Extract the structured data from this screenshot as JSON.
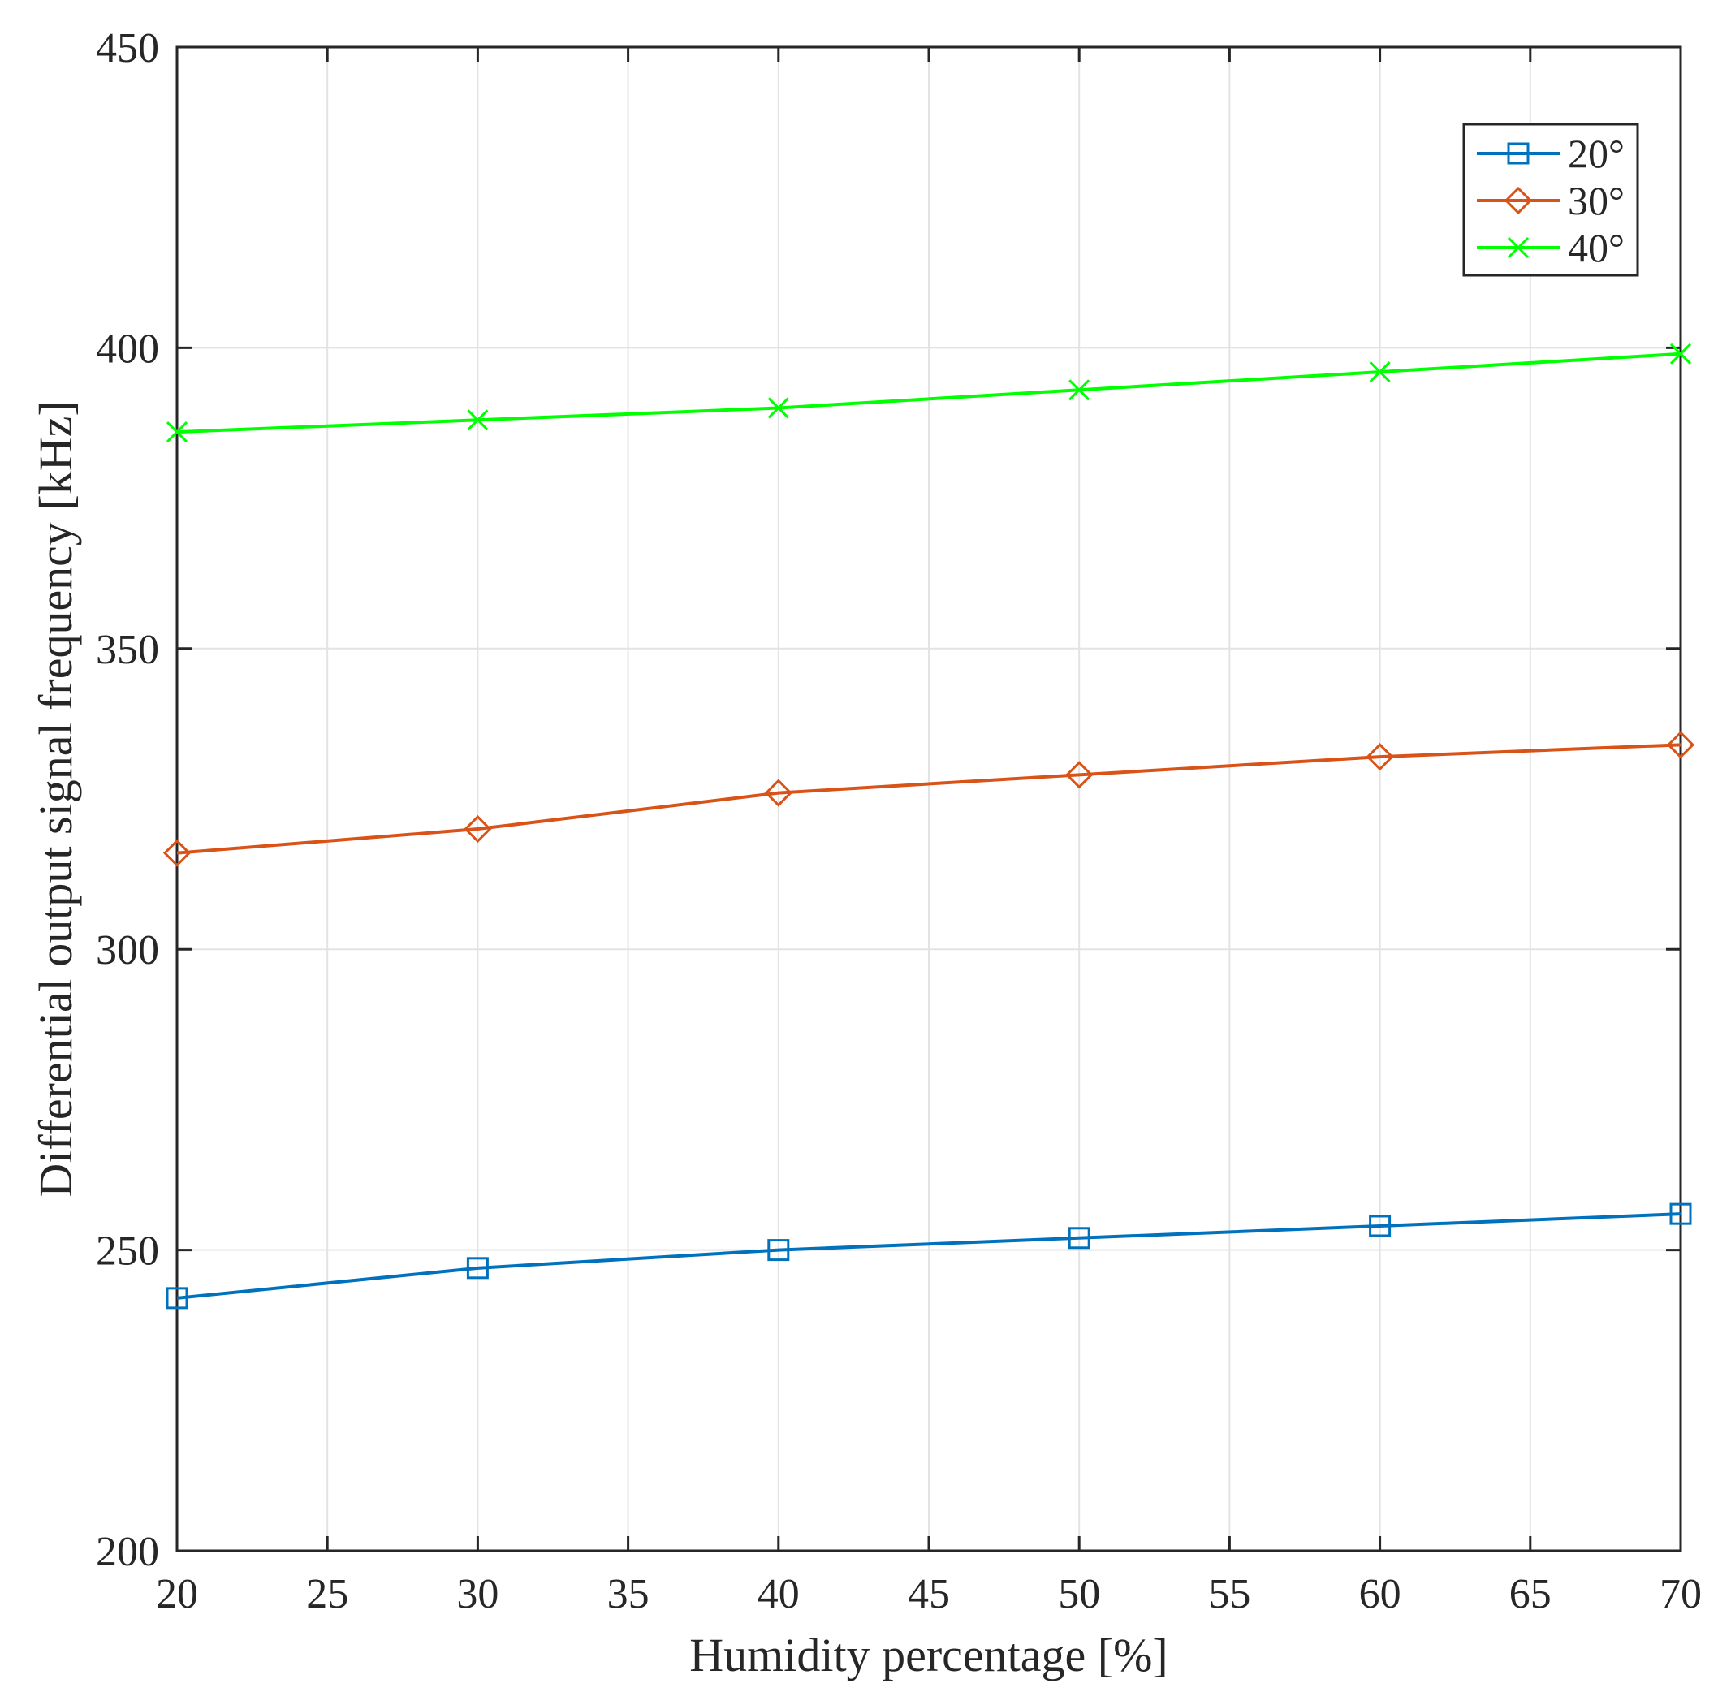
{
  "chart_data": {
    "type": "line",
    "title": "",
    "xlabel": "Humidity percentage [%]",
    "ylabel": "Differential output signal frequency [kHz]",
    "xlim": [
      20,
      70
    ],
    "ylim": [
      200,
      450
    ],
    "xticks": [
      "20",
      "25",
      "30",
      "35",
      "40",
      "45",
      "50",
      "55",
      "60",
      "65",
      "70"
    ],
    "yticks": [
      "200",
      "250",
      "300",
      "350",
      "400",
      "450"
    ],
    "grid": true,
    "legend_position": "top-right",
    "x": [
      20,
      30,
      40,
      50,
      60,
      70
    ],
    "series": [
      {
        "name": "20°",
        "color": "#0072BD",
        "marker": "square",
        "values": [
          242,
          247,
          250,
          252,
          254,
          256
        ]
      },
      {
        "name": "30°",
        "color": "#D95319",
        "marker": "diamond",
        "values": [
          316,
          320,
          326,
          329,
          332,
          334
        ]
      },
      {
        "name": "40°",
        "color": "#00FF00",
        "marker": "x",
        "values": [
          386,
          388,
          390,
          393,
          396,
          399
        ]
      }
    ]
  }
}
